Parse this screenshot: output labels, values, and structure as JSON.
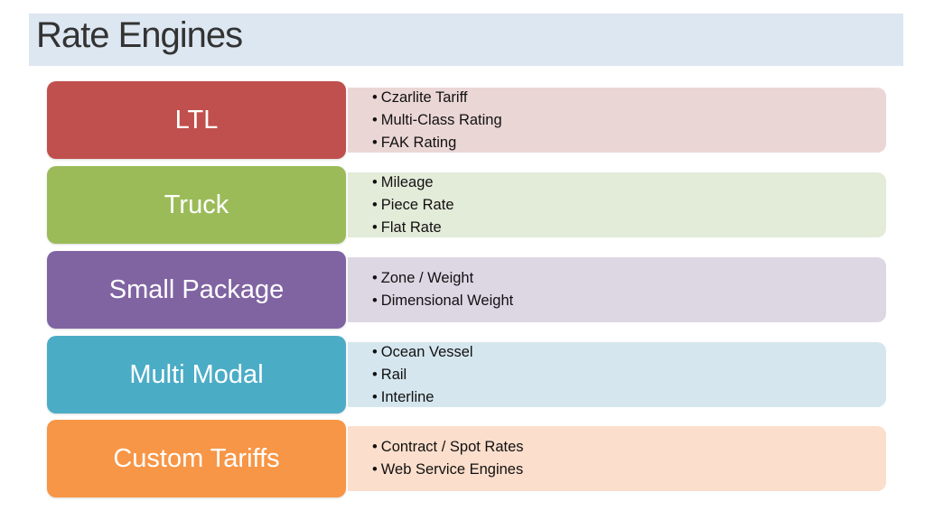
{
  "title": "Rate Engines",
  "rows": [
    {
      "label": "LTL",
      "color": "#c0504d",
      "light": "#ebd6d6",
      "items": [
        "Czarlite Tariff",
        "Multi-Class Rating",
        "FAK Rating"
      ]
    },
    {
      "label": "Truck",
      "color": "#9bbb59",
      "light": "#e3ebd9",
      "items": [
        "Mileage",
        "Piece Rate",
        "Flat Rate"
      ]
    },
    {
      "label": "Small Package",
      "color": "#8064a2",
      "light": "#ddd7e4",
      "items": [
        "Zone / Weight",
        "Dimensional Weight"
      ]
    },
    {
      "label": "Multi Modal",
      "color": "#4bacc6",
      "light": "#d5e6ee",
      "items": [
        "Ocean Vessel",
        "Rail",
        "Interline"
      ]
    },
    {
      "label": "Custom Tariffs",
      "color": "#f79646",
      "light": "#fbdecc",
      "items": [
        "Contract / Spot Rates",
        "Web Service Engines"
      ]
    }
  ]
}
